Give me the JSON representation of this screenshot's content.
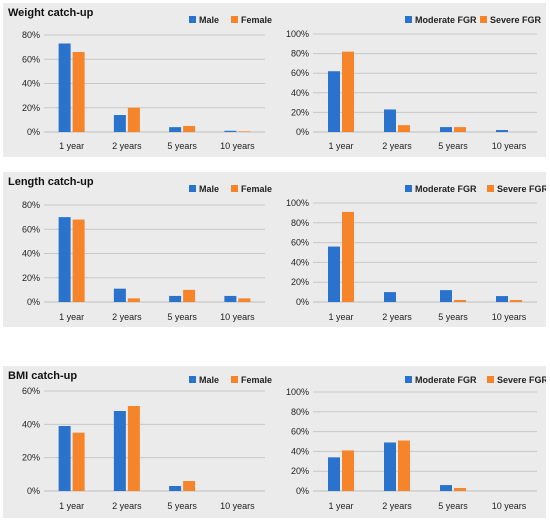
{
  "colors": {
    "blue": "#2a73cc",
    "orange": "#f5842a",
    "grid": "#c8c8c8",
    "axis": "#bfbfbf",
    "text": "#222222"
  },
  "panels": [
    {
      "title": "Weight catch-up"
    },
    {
      "title": "Length catch-up"
    },
    {
      "title": "BMI catch-up"
    }
  ],
  "chart_data": [
    {
      "type": "bar",
      "panel": "Weight catch-up",
      "legend_position": "top-right",
      "grid": true,
      "categories": [
        "1 year",
        "2 years",
        "5 years",
        "10 years"
      ],
      "yticks": [
        "0%",
        "20%",
        "40%",
        "60%",
        "80%"
      ],
      "ylim": [
        0,
        80
      ],
      "series": [
        {
          "name": "Male",
          "color": "blue",
          "values": [
            73,
            14,
            4,
            1
          ]
        },
        {
          "name": "Female",
          "color": "orange",
          "values": [
            66,
            20,
            5,
            0.5
          ]
        }
      ]
    },
    {
      "type": "bar",
      "panel": "Weight catch-up",
      "legend_position": "top-right",
      "grid": true,
      "categories": [
        "1 year",
        "2 years",
        "5 years",
        "10 years"
      ],
      "yticks": [
        "0%",
        "20%",
        "40%",
        "60%",
        "80%",
        "100%"
      ],
      "ylim": [
        0,
        100
      ],
      "series": [
        {
          "name": "Moderate FGR",
          "color": "blue",
          "values": [
            62,
            23,
            5,
            2
          ]
        },
        {
          "name": "Severe FGR",
          "color": "orange",
          "values": [
            82,
            7,
            5,
            0
          ]
        }
      ]
    },
    {
      "type": "bar",
      "panel": "Length catch-up",
      "legend_position": "top-right",
      "grid": true,
      "categories": [
        "1 year",
        "2 years",
        "5 years",
        "10 years"
      ],
      "yticks": [
        "0%",
        "20%",
        "40%",
        "60%",
        "80%"
      ],
      "ylim": [
        0,
        80
      ],
      "series": [
        {
          "name": "Male",
          "color": "blue",
          "values": [
            70,
            11,
            5,
            5
          ]
        },
        {
          "name": "Female",
          "color": "orange",
          "values": [
            68,
            3,
            10,
            3
          ]
        }
      ]
    },
    {
      "type": "bar",
      "panel": "Length catch-up",
      "legend_position": "top-right",
      "grid": true,
      "categories": [
        "1 year",
        "2 years",
        "5 years",
        "10 years"
      ],
      "yticks": [
        "0%",
        "20%",
        "40%",
        "60%",
        "80%",
        "100%"
      ],
      "ylim": [
        0,
        100
      ],
      "series": [
        {
          "name": "Moderate FGR",
          "color": "blue",
          "values": [
            56,
            10,
            12,
            6
          ]
        },
        {
          "name": "Severe FGR",
          "color": "orange",
          "values": [
            91,
            0,
            2,
            2
          ]
        }
      ]
    },
    {
      "type": "bar",
      "panel": "BMI catch-up",
      "legend_position": "top-right",
      "grid": true,
      "categories": [
        "1 year",
        "2 years",
        "5 years",
        "10 years"
      ],
      "yticks": [
        "0%",
        "20%",
        "40%",
        "60%"
      ],
      "ylim": [
        0,
        60
      ],
      "series": [
        {
          "name": "Male",
          "color": "blue",
          "values": [
            39,
            48,
            3,
            0
          ]
        },
        {
          "name": "Female",
          "color": "orange",
          "values": [
            35,
            51,
            6,
            0
          ]
        }
      ]
    },
    {
      "type": "bar",
      "panel": "BMI catch-up",
      "legend_position": "top-right",
      "grid": true,
      "categories": [
        "1 year",
        "2 years",
        "5 years",
        "10 years"
      ],
      "yticks": [
        "0%",
        "20%",
        "40%",
        "60%",
        "80%",
        "100%"
      ],
      "ylim": [
        0,
        100
      ],
      "series": [
        {
          "name": "Moderate FGR",
          "color": "blue",
          "values": [
            34,
            49,
            6,
            0
          ]
        },
        {
          "name": "Severe FGR",
          "color": "orange",
          "values": [
            41,
            51,
            3,
            0
          ]
        }
      ]
    }
  ]
}
